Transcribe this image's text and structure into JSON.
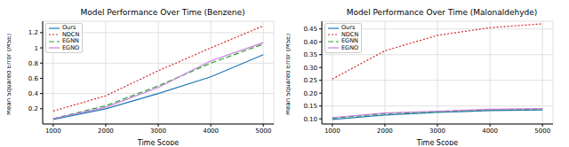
{
  "chart_data": [
    {
      "type": "line",
      "title": "Model Performance Over Time (Benzene)",
      "x_label": "Time Scope",
      "y_label": "Mean Squared Error (MSE)",
      "x": [
        1000,
        2000,
        3000,
        4000,
        5000
      ],
      "xlim": [
        800,
        5200
      ],
      "xticks": [
        1000,
        2000,
        3000,
        4000,
        5000
      ],
      "ylim": [
        0,
        1.35
      ],
      "yticks": [
        0.2,
        0.4,
        0.6,
        0.8,
        1.0,
        1.2
      ],
      "grid": true,
      "legend": "upper left",
      "series": [
        {
          "name": "Ours",
          "color": "#1f77b4",
          "line_style": "solid",
          "values": [
            0.06,
            0.2,
            0.4,
            0.62,
            0.91
          ]
        },
        {
          "name": "NDCN",
          "color": "#d62728",
          "line_style": "dotted",
          "values": [
            0.17,
            0.37,
            0.7,
            1.0,
            1.29
          ]
        },
        {
          "name": "EGNN",
          "color": "#2ca02c",
          "line_style": "dashed",
          "values": [
            0.07,
            0.24,
            0.5,
            0.8,
            1.05
          ]
        },
        {
          "name": "EGNO",
          "color": "#c77ee0",
          "line_style": "solid",
          "values": [
            0.07,
            0.22,
            0.48,
            0.83,
            1.07
          ]
        }
      ]
    },
    {
      "type": "line",
      "title": "Model Performance Over Time (Malonaldehyde)",
      "x_label": "Time Scope",
      "y_label": "Mean Squared Error (MSE)",
      "x": [
        1000,
        2000,
        3000,
        4000,
        5000
      ],
      "xlim": [
        800,
        5200
      ],
      "xticks": [
        1000,
        2000,
        3000,
        4000,
        5000
      ],
      "ylim": [
        0.08,
        0.48
      ],
      "yticks": [
        {
          "value": 0.1,
          "label": "0.10"
        },
        {
          "value": 0.15,
          "label": "0.15"
        },
        {
          "value": 0.2,
          "label": "0.20"
        },
        {
          "value": 0.25,
          "label": "0.25"
        },
        {
          "value": 0.3,
          "label": "0.30"
        },
        {
          "value": 0.35,
          "label": "0.35"
        },
        {
          "value": 0.4,
          "label": "0.40"
        },
        {
          "value": 0.45,
          "label": "0.45"
        }
      ],
      "grid": true,
      "legend": "upper left",
      "series": [
        {
          "name": "Ours",
          "color": "#1f77b4",
          "line_style": "solid",
          "values": [
            0.098,
            0.115,
            0.125,
            0.132,
            0.135
          ]
        },
        {
          "name": "NDCN",
          "color": "#d62728",
          "line_style": "dotted",
          "values": [
            0.255,
            0.365,
            0.425,
            0.455,
            0.47
          ]
        },
        {
          "name": "EGNN",
          "color": "#2ca02c",
          "line_style": "dashed",
          "values": [
            0.103,
            0.12,
            0.128,
            0.135,
            0.138
          ]
        },
        {
          "name": "EGNO",
          "color": "#c77ee0",
          "line_style": "solid",
          "values": [
            0.105,
            0.123,
            0.13,
            0.137,
            0.14
          ]
        }
      ]
    }
  ]
}
